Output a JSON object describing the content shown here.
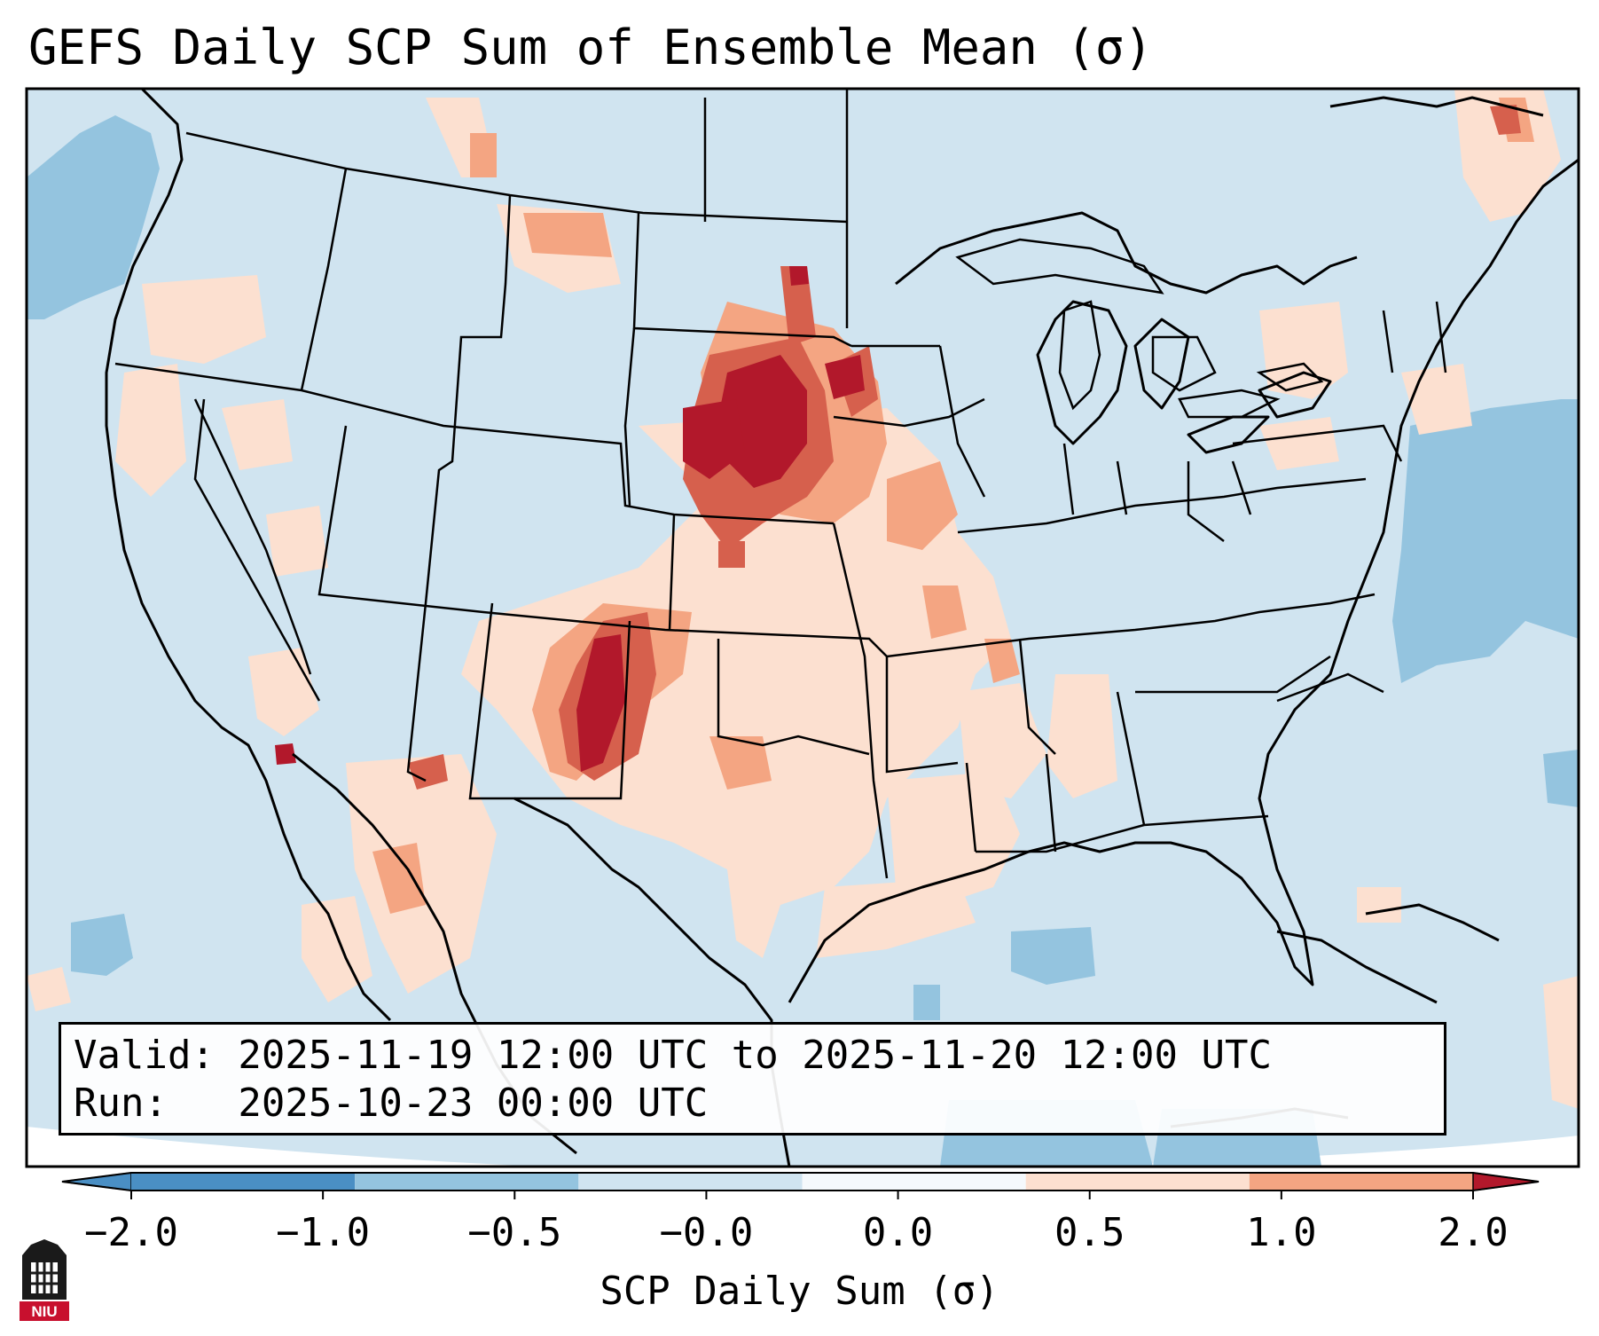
{
  "title": "GEFS Daily SCP Sum of Ensemble Mean (σ)",
  "valid_line": "Valid: 2025-11-19 12:00 UTC to 2025-11-20 12:00 UTC",
  "run_line": "Run:   2025-10-23 00:00 UTC",
  "colorbar": {
    "label": "SCP Daily Sum (σ)",
    "ticks": [
      "−2.0",
      "−1.0",
      "−0.5",
      "−0.0",
      "0.0",
      "0.5",
      "1.0",
      "2.0"
    ],
    "colors": [
      "#4a8fc4",
      "#94c4df",
      "#d0e4f0",
      "#f5f9fc",
      "#fce0d0",
      "#f4a582",
      "#d6604d",
      "#b2182b"
    ]
  },
  "logo_text": "NIU",
  "colors": {
    "background": "#d0e4f0",
    "state_lines": "#000000"
  }
}
